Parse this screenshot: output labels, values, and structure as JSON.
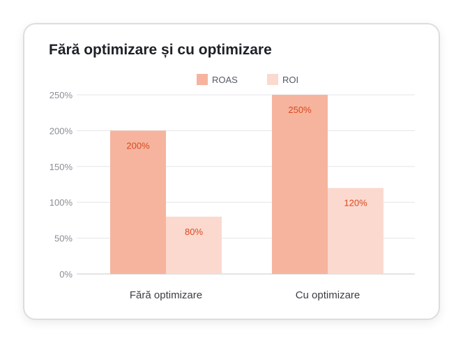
{
  "chart_data": {
    "type": "bar",
    "title": "Fără optimizare și cu optimizare",
    "categories": [
      "Fără optimizare",
      "Cu optimizare"
    ],
    "series": [
      {
        "name": "ROAS",
        "values": [
          200,
          250
        ],
        "labels": [
          "200%",
          "250%"
        ],
        "color": "#f6b49e"
      },
      {
        "name": "ROI",
        "values": [
          80,
          120
        ],
        "labels": [
          "80%",
          "120%"
        ],
        "color": "#fbd9cf"
      }
    ],
    "ylim": [
      0,
      250
    ],
    "yticks": [
      0,
      50,
      100,
      150,
      200,
      250
    ],
    "ytick_labels": [
      "0%",
      "50%",
      "100%",
      "150%",
      "200%",
      "250%"
    ],
    "xlabel": "",
    "ylabel": "",
    "grid": true,
    "legend": "top-right",
    "label_color": "#d9481e"
  }
}
